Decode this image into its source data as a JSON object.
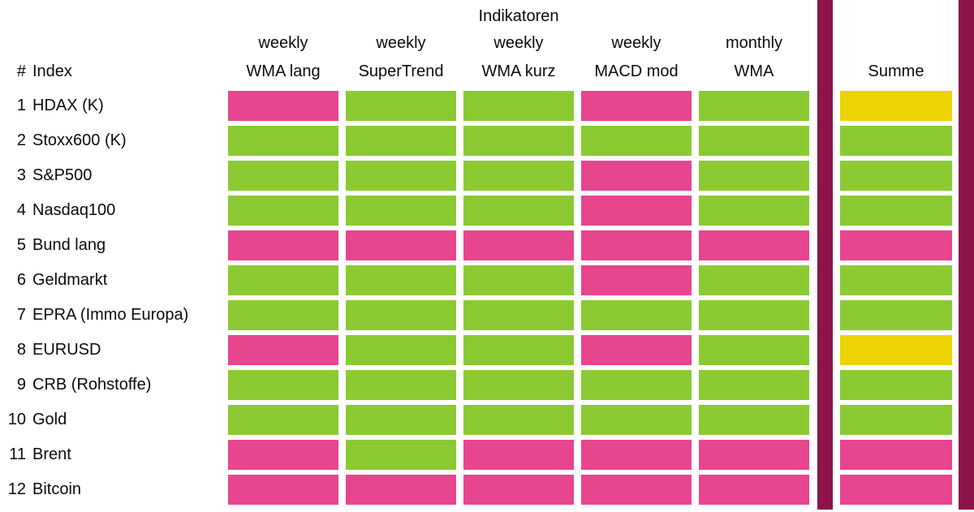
{
  "title": "Indikatoren",
  "header": {
    "rank": "#",
    "index": "Index",
    "summe": "Summe"
  },
  "columns": [
    {
      "period": "weekly",
      "name": "WMA lang"
    },
    {
      "period": "weekly",
      "name": "SuperTrend"
    },
    {
      "period": "weekly",
      "name": "WMA kurz"
    },
    {
      "period": "weekly",
      "name": "MACD mod"
    },
    {
      "period": "monthly",
      "name": "WMA"
    }
  ],
  "colors": {
    "positive": "#8BCA33",
    "negative": "#E8458F",
    "neutral": "#ECD404",
    "divider": "#8C124A",
    "text": "#0B0B0B",
    "background": "#FFFFFF"
  },
  "rows": [
    {
      "num": "1",
      "label": "HDAX (K)",
      "signals": [
        "negative",
        "positive",
        "positive",
        "negative",
        "positive"
      ],
      "summe": "neutral"
    },
    {
      "num": "2",
      "label": "Stoxx600 (K)",
      "signals": [
        "positive",
        "positive",
        "positive",
        "positive",
        "positive"
      ],
      "summe": "positive"
    },
    {
      "num": "3",
      "label": "S&P500",
      "signals": [
        "positive",
        "positive",
        "positive",
        "negative",
        "positive"
      ],
      "summe": "positive"
    },
    {
      "num": "4",
      "label": "Nasdaq100",
      "signals": [
        "positive",
        "positive",
        "positive",
        "negative",
        "positive"
      ],
      "summe": "positive"
    },
    {
      "num": "5",
      "label": "Bund lang",
      "signals": [
        "negative",
        "negative",
        "negative",
        "negative",
        "negative"
      ],
      "summe": "negative"
    },
    {
      "num": "6",
      "label": "Geldmarkt",
      "signals": [
        "positive",
        "positive",
        "positive",
        "negative",
        "positive"
      ],
      "summe": "positive"
    },
    {
      "num": "7",
      "label": "EPRA (Immo Europa)",
      "signals": [
        "positive",
        "positive",
        "positive",
        "positive",
        "positive"
      ],
      "summe": "positive"
    },
    {
      "num": "8",
      "label": "EURUSD",
      "signals": [
        "negative",
        "positive",
        "positive",
        "negative",
        "positive"
      ],
      "summe": "neutral"
    },
    {
      "num": "9",
      "label": "CRB (Rohstoffe)",
      "signals": [
        "positive",
        "positive",
        "positive",
        "positive",
        "positive"
      ],
      "summe": "positive"
    },
    {
      "num": "10",
      "label": "Gold",
      "signals": [
        "positive",
        "positive",
        "positive",
        "positive",
        "positive"
      ],
      "summe": "positive"
    },
    {
      "num": "11",
      "label": "Brent",
      "signals": [
        "negative",
        "positive",
        "negative",
        "negative",
        "negative"
      ],
      "summe": "negative"
    },
    {
      "num": "12",
      "label": "Bitcoin",
      "signals": [
        "negative",
        "negative",
        "negative",
        "negative",
        "negative"
      ],
      "summe": "negative"
    }
  ],
  "chart_data": {
    "type": "heatmap",
    "title": "Indikatoren",
    "columns": [
      "weekly WMA lang",
      "weekly SuperTrend",
      "weekly WMA kurz",
      "weekly MACD mod",
      "monthly WMA",
      "Summe"
    ],
    "rows": [
      "HDAX (K)",
      "Stoxx600 (K)",
      "S&P500",
      "Nasdaq100",
      "Bund lang",
      "Geldmarkt",
      "EPRA (Immo Europa)",
      "EURUSD",
      "CRB (Rohstoffe)",
      "Gold",
      "Brent",
      "Bitcoin"
    ],
    "values": [
      [
        "negative",
        "positive",
        "positive",
        "negative",
        "positive",
        "neutral"
      ],
      [
        "positive",
        "positive",
        "positive",
        "positive",
        "positive",
        "positive"
      ],
      [
        "positive",
        "positive",
        "positive",
        "negative",
        "positive",
        "positive"
      ],
      [
        "positive",
        "positive",
        "positive",
        "negative",
        "positive",
        "positive"
      ],
      [
        "negative",
        "negative",
        "negative",
        "negative",
        "negative",
        "negative"
      ],
      [
        "positive",
        "positive",
        "positive",
        "negative",
        "positive",
        "positive"
      ],
      [
        "positive",
        "positive",
        "positive",
        "positive",
        "positive",
        "positive"
      ],
      [
        "negative",
        "positive",
        "positive",
        "negative",
        "positive",
        "neutral"
      ],
      [
        "positive",
        "positive",
        "positive",
        "positive",
        "positive",
        "positive"
      ],
      [
        "positive",
        "positive",
        "positive",
        "positive",
        "positive",
        "positive"
      ],
      [
        "negative",
        "positive",
        "negative",
        "negative",
        "negative",
        "negative"
      ],
      [
        "negative",
        "negative",
        "negative",
        "negative",
        "negative",
        "negative"
      ]
    ],
    "color_map": {
      "positive": "#8BCA33",
      "negative": "#E8458F",
      "neutral": "#ECD404"
    },
    "legend_position": "none",
    "grid": false
  }
}
